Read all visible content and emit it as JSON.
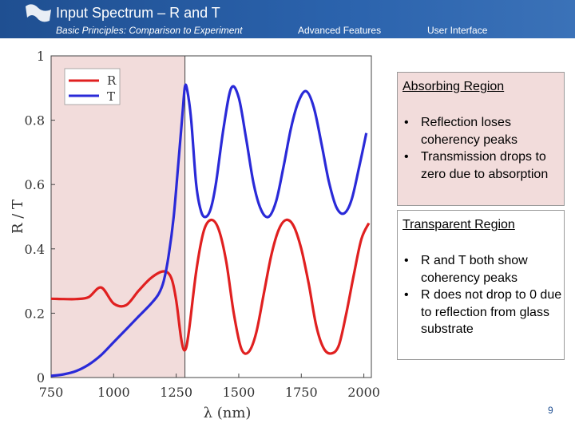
{
  "header": {
    "title": "Input Spectrum – R and T",
    "nav": [
      "Basic Principles: Comparison to Experiment",
      "Advanced Features",
      "User Interface"
    ]
  },
  "chart_data": {
    "type": "line",
    "xlabel": "λ (nm)",
    "ylabel": "R / T",
    "xlim": [
      750,
      2030
    ],
    "ylim": [
      0,
      1
    ],
    "xticks": [
      "750",
      "1000",
      "1250",
      "1500",
      "1750",
      "2000"
    ],
    "yticks": [
      "0",
      "0.2",
      "0.4",
      "0.6",
      "0.8",
      "1"
    ],
    "shaded_region": {
      "from": 750,
      "to": 1285,
      "color": "#f2dcdb"
    },
    "legend": [
      "R",
      "T"
    ],
    "series": [
      {
        "name": "R",
        "color": "#e02020",
        "x": [
          750,
          800,
          850,
          900,
          950,
          1000,
          1050,
          1100,
          1150,
          1200,
          1230,
          1250,
          1270,
          1285,
          1300,
          1330,
          1360,
          1390,
          1420,
          1450,
          1480,
          1510,
          1540,
          1570,
          1600,
          1630,
          1660,
          1690,
          1720,
          1750,
          1780,
          1810,
          1840,
          1870,
          1900,
          1930,
          1960,
          1990,
          2020
        ],
        "y": [
          0.245,
          0.244,
          0.244,
          0.25,
          0.28,
          0.23,
          0.225,
          0.27,
          0.31,
          0.33,
          0.31,
          0.24,
          0.12,
          0.085,
          0.14,
          0.33,
          0.455,
          0.49,
          0.46,
          0.36,
          0.2,
          0.09,
          0.08,
          0.14,
          0.26,
          0.38,
          0.46,
          0.49,
          0.47,
          0.4,
          0.29,
          0.16,
          0.09,
          0.075,
          0.1,
          0.2,
          0.32,
          0.43,
          0.48
        ]
      },
      {
        "name": "T",
        "color": "#2a2ad8",
        "x": [
          750,
          800,
          850,
          900,
          950,
          1000,
          1050,
          1100,
          1150,
          1180,
          1200,
          1220,
          1240,
          1260,
          1275,
          1285,
          1295,
          1310,
          1330,
          1350,
          1370,
          1390,
          1410,
          1440,
          1470,
          1500,
          1530,
          1560,
          1590,
          1620,
          1650,
          1680,
          1710,
          1740,
          1770,
          1800,
          1830,
          1860,
          1890,
          1920,
          1950,
          1980,
          2010
        ],
        "y": [
          0.005,
          0.01,
          0.02,
          0.04,
          0.07,
          0.11,
          0.15,
          0.19,
          0.23,
          0.26,
          0.3,
          0.38,
          0.5,
          0.68,
          0.82,
          0.905,
          0.89,
          0.8,
          0.6,
          0.515,
          0.5,
          0.53,
          0.61,
          0.78,
          0.9,
          0.87,
          0.74,
          0.6,
          0.52,
          0.5,
          0.55,
          0.66,
          0.78,
          0.86,
          0.89,
          0.84,
          0.73,
          0.61,
          0.53,
          0.51,
          0.55,
          0.65,
          0.76
        ]
      }
    ]
  },
  "box_absorbing": {
    "title": "Absorbing Region",
    "bullets": [
      "Reflection loses coherency peaks",
      "Transmission drops to zero due to absorption"
    ]
  },
  "box_transparent": {
    "title": "Transparent Region",
    "bullets": [
      "R and T both show coherency peaks",
      "R does not drop to 0 due to reflection from glass substrate"
    ]
  },
  "page_number": "9",
  "colors": {
    "header": "#2b63ad",
    "shade": "#f2dcdb",
    "R": "#e02020",
    "T": "#2a2ad8"
  }
}
